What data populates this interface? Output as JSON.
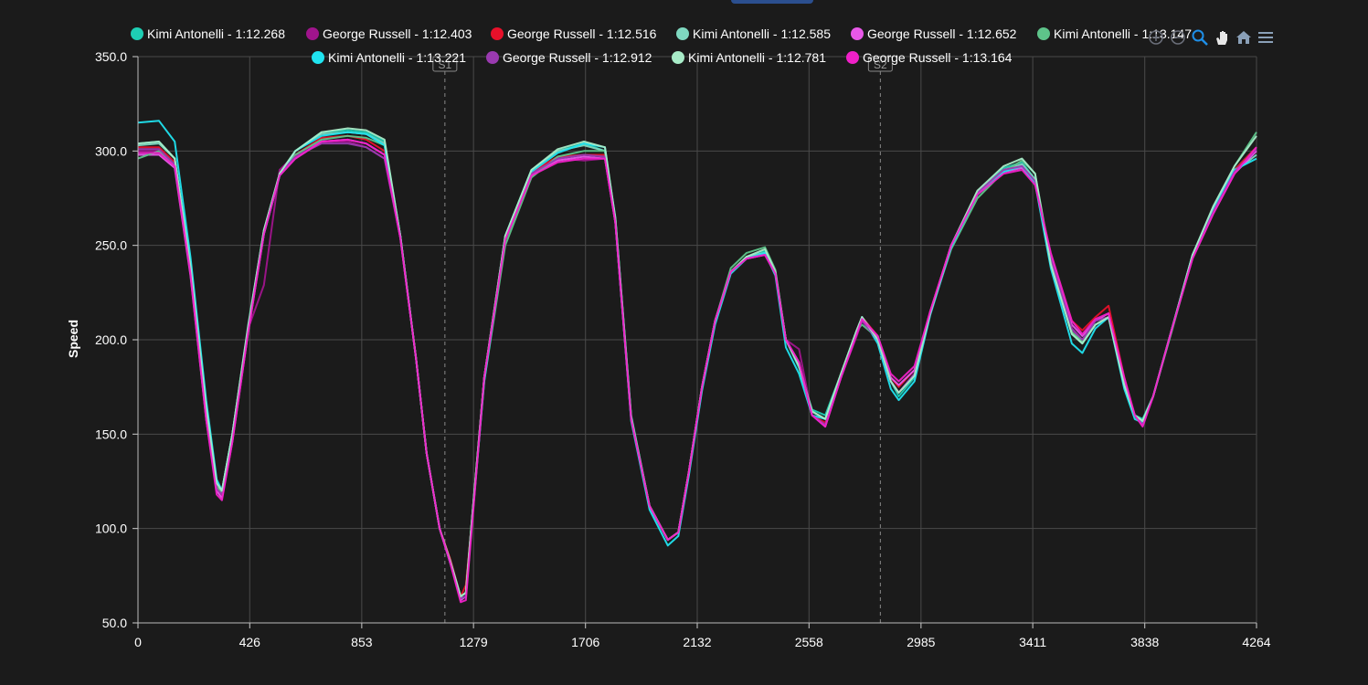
{
  "toolbar": {
    "icons": [
      "zoom-in-icon",
      "zoom-out-icon",
      "zoom-select-icon",
      "pan-icon",
      "home-icon",
      "menu-icon"
    ],
    "active": "zoom-select-icon"
  },
  "chart_data": {
    "type": "line",
    "ylabel": "Speed",
    "xlabel": "",
    "xlim": [
      0,
      4264
    ],
    "ylim": [
      50,
      350
    ],
    "x_ticks": [
      0,
      426,
      853,
      1279,
      1706,
      2132,
      2558,
      2985,
      3411,
      3838,
      4264
    ],
    "y_ticks": [
      "50.0",
      "100.0",
      "150.0",
      "200.0",
      "250.0",
      "300.0",
      "350.0"
    ],
    "grid": true,
    "legend_position": "top",
    "sector_markers": [
      {
        "label": "S1",
        "x": 1170
      },
      {
        "label": "S2",
        "x": 2830
      }
    ],
    "x": [
      0,
      80,
      140,
      200,
      260,
      300,
      320,
      360,
      420,
      480,
      540,
      600,
      700,
      800,
      870,
      940,
      1000,
      1060,
      1100,
      1150,
      1190,
      1230,
      1250,
      1270,
      1320,
      1400,
      1500,
      1600,
      1700,
      1780,
      1820,
      1880,
      1950,
      2020,
      2060,
      2100,
      2150,
      2200,
      2260,
      2320,
      2390,
      2430,
      2470,
      2520,
      2570,
      2620,
      2680,
      2740,
      2760,
      2820,
      2870,
      2900,
      2960,
      3020,
      3100,
      3200,
      3300,
      3370,
      3420,
      3480,
      3560,
      3600,
      3650,
      3700,
      3760,
      3800,
      3830,
      3870,
      3940,
      4020,
      4100,
      4180,
      4264
    ],
    "series": [
      {
        "name": "Kimi Antonelli - 1:12.268",
        "color": "#1ecfb4",
        "values": [
          304,
          305,
          296,
          240,
          165,
          125,
          120,
          150,
          208,
          258,
          288,
          300,
          310,
          311,
          310,
          305,
          255,
          190,
          140,
          100,
          82,
          64,
          66,
          100,
          180,
          255,
          290,
          300,
          304,
          300,
          265,
          160,
          112,
          94,
          98,
          130,
          175,
          210,
          236,
          244,
          247,
          236,
          200,
          185,
          163,
          160,
          182,
          205,
          212,
          200,
          178,
          170,
          180,
          214,
          250,
          278,
          291,
          294,
          285,
          240,
          203,
          198,
          208,
          212,
          175,
          160,
          158,
          170,
          205,
          245,
          270,
          290,
          302
        ]
      },
      {
        "name": "George Russell - 1:12.403",
        "color": "#a0148c",
        "values": [
          300,
          300,
          292,
          236,
          160,
          120,
          117,
          148,
          206,
          229,
          290,
          298,
          305,
          305,
          302,
          296,
          254,
          190,
          140,
          100,
          82,
          63,
          64,
          98,
          180,
          254,
          288,
          296,
          295,
          296,
          262,
          158,
          112,
          94,
          98,
          130,
          175,
          210,
          236,
          243,
          245,
          236,
          200,
          195,
          160,
          155,
          180,
          202,
          210,
          200,
          178,
          172,
          182,
          214,
          250,
          278,
          290,
          293,
          284,
          242,
          205,
          200,
          210,
          212,
          178,
          160,
          155,
          170,
          205,
          244,
          268,
          288,
          300
        ]
      },
      {
        "name": "George Russell - 1:12.516",
        "color": "#e8102a",
        "values": [
          302,
          302,
          294,
          238,
          162,
          122,
          118,
          150,
          207,
          257,
          288,
          298,
          307,
          308,
          306,
          300,
          255,
          190,
          140,
          100,
          84,
          64,
          70,
          100,
          180,
          254,
          289,
          297,
          298,
          298,
          262,
          158,
          112,
          94,
          98,
          130,
          175,
          210,
          236,
          243,
          246,
          236,
          200,
          187,
          160,
          156,
          180,
          205,
          212,
          202,
          180,
          175,
          184,
          215,
          250,
          278,
          290,
          292,
          284,
          245,
          210,
          205,
          212,
          218,
          180,
          160,
          156,
          170,
          205,
          244,
          268,
          290,
          302
        ]
      },
      {
        "name": "Kimi Antonelli - 1:12.585",
        "color": "#7fd8c0",
        "values": [
          303,
          304,
          296,
          238,
          164,
          124,
          120,
          150,
          207,
          258,
          288,
          300,
          309,
          310,
          309,
          304,
          255,
          190,
          140,
          100,
          83,
          64,
          66,
          100,
          180,
          255,
          290,
          300,
          303,
          300,
          264,
          159,
          112,
          94,
          98,
          130,
          175,
          210,
          236,
          244,
          246,
          236,
          200,
          186,
          162,
          158,
          182,
          205,
          212,
          201,
          178,
          172,
          181,
          214,
          250,
          278,
          290,
          293,
          285,
          241,
          204,
          199,
          208,
          212,
          176,
          160,
          157,
          170,
          205,
          245,
          269,
          289,
          298
        ]
      },
      {
        "name": "George Russell - 1:12.652",
        "color": "#e858e8",
        "values": [
          298,
          298,
          291,
          234,
          158,
          120,
          116,
          146,
          204,
          256,
          287,
          296,
          305,
          306,
          304,
          298,
          254,
          190,
          140,
          100,
          82,
          62,
          64,
          98,
          180,
          253,
          287,
          295,
          297,
          296,
          262,
          158,
          112,
          94,
          98,
          130,
          175,
          210,
          236,
          243,
          245,
          235,
          200,
          188,
          160,
          154,
          180,
          203,
          211,
          202,
          180,
          176,
          184,
          215,
          250,
          277,
          289,
          291,
          283,
          244,
          208,
          202,
          210,
          214,
          178,
          160,
          155,
          170,
          205,
          243,
          267,
          288,
          300
        ]
      },
      {
        "name": "Kimi Antonelli - 1:13.147",
        "color": "#5ec48a",
        "values": [
          296,
          300,
          292,
          236,
          162,
          122,
          119,
          148,
          206,
          257,
          287,
          298,
          306,
          308,
          307,
          303,
          255,
          190,
          140,
          100,
          83,
          64,
          66,
          100,
          178,
          250,
          286,
          297,
          300,
          300,
          264,
          159,
          112,
          94,
          98,
          130,
          175,
          210,
          238,
          246,
          249,
          237,
          200,
          186,
          162,
          158,
          182,
          205,
          208,
          201,
          178,
          172,
          181,
          214,
          248,
          275,
          289,
          295,
          288,
          242,
          204,
          199,
          208,
          212,
          176,
          160,
          156,
          170,
          204,
          244,
          270,
          292,
          310
        ]
      },
      {
        "name": "Kimi Antonelli - 1:13.221",
        "color": "#20e4f0",
        "values": [
          315,
          316,
          305,
          244,
          168,
          126,
          120,
          150,
          206,
          256,
          287,
          300,
          308,
          310,
          309,
          303,
          255,
          190,
          140,
          100,
          82,
          63,
          64,
          98,
          178,
          254,
          289,
          299,
          304,
          302,
          262,
          157,
          110,
          91,
          96,
          128,
          173,
          208,
          235,
          243,
          246,
          234,
          196,
          182,
          160,
          158,
          180,
          204,
          212,
          198,
          174,
          168,
          178,
          213,
          249,
          277,
          289,
          292,
          283,
          238,
          198,
          193,
          206,
          212,
          174,
          158,
          156,
          170,
          205,
          245,
          270,
          290,
          296
        ]
      },
      {
        "name": "George Russell - 1:12.912",
        "color": "#9a3ab0",
        "values": [
          301,
          301,
          293,
          237,
          160,
          121,
          118,
          148,
          206,
          257,
          288,
          297,
          304,
          304,
          302,
          296,
          254,
          190,
          140,
          100,
          82,
          63,
          64,
          98,
          180,
          254,
          288,
          296,
          298,
          297,
          262,
          158,
          112,
          94,
          98,
          130,
          175,
          210,
          236,
          243,
          245,
          236,
          200,
          187,
          160,
          155,
          180,
          203,
          210,
          200,
          178,
          172,
          182,
          214,
          250,
          278,
          290,
          292,
          284,
          243,
          206,
          200,
          210,
          212,
          178,
          160,
          155,
          170,
          205,
          244,
          268,
          289,
          301
        ]
      },
      {
        "name": "Kimi Antonelli - 1:12.781",
        "color": "#a8ecc8",
        "values": [
          304,
          305,
          296,
          239,
          164,
          124,
          120,
          150,
          207,
          258,
          288,
          300,
          310,
          312,
          311,
          306,
          255,
          190,
          140,
          100,
          83,
          64,
          66,
          100,
          180,
          255,
          290,
          301,
          305,
          302,
          264,
          159,
          112,
          94,
          98,
          130,
          175,
          210,
          236,
          244,
          248,
          236,
          200,
          186,
          162,
          158,
          182,
          205,
          212,
          200,
          178,
          172,
          181,
          214,
          250,
          279,
          292,
          296,
          288,
          240,
          203,
          198,
          208,
          212,
          176,
          160,
          157,
          170,
          205,
          245,
          271,
          292,
          308
        ]
      },
      {
        "name": "George Russell - 1:13.164",
        "color": "#f020c8",
        "values": [
          299,
          299,
          292,
          235,
          158,
          118,
          115,
          146,
          204,
          256,
          287,
          296,
          305,
          306,
          304,
          298,
          254,
          190,
          140,
          100,
          82,
          61,
          62,
          96,
          180,
          253,
          287,
          294,
          296,
          296,
          262,
          158,
          112,
          94,
          98,
          130,
          175,
          210,
          236,
          243,
          245,
          235,
          200,
          188,
          160,
          154,
          180,
          203,
          211,
          202,
          182,
          178,
          186,
          215,
          250,
          277,
          288,
          290,
          282,
          246,
          210,
          203,
          211,
          214,
          180,
          160,
          154,
          170,
          205,
          243,
          267,
          288,
          302
        ]
      }
    ]
  }
}
